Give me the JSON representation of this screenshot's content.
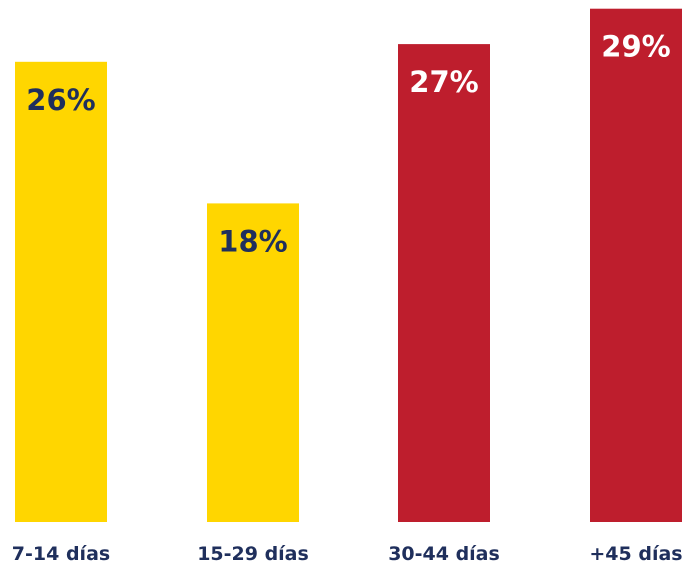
{
  "chart_data": {
    "type": "bar",
    "categories": [
      "7-14 días",
      "15-29 días",
      "30-44 días",
      "+45 días"
    ],
    "values": [
      26,
      18,
      27,
      29
    ],
    "value_labels": [
      "26%",
      "18%",
      "27%",
      "29%"
    ],
    "unit": "%",
    "title": "",
    "xlabel": "",
    "ylabel": "",
    "ylim": [
      0,
      30
    ],
    "grid": false,
    "legend": "none",
    "colors": {
      "bars": [
        "#FFD600",
        "#FFD600",
        "#BE1E2D",
        "#BE1E2D"
      ],
      "value_labels": [
        "#1F2F5C",
        "#1F2F5C",
        "#FFFFFF",
        "#FFFFFF"
      ],
      "category_labels": "#1F2F5C"
    }
  }
}
